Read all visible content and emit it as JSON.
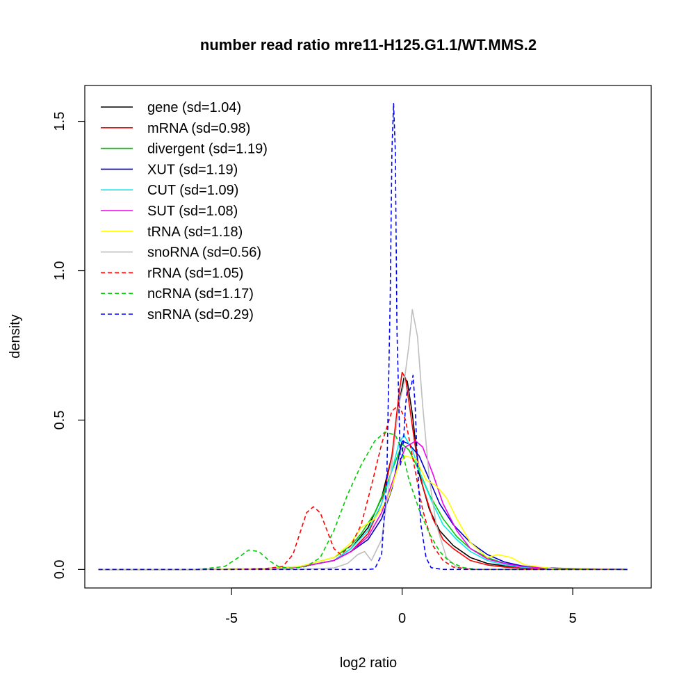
{
  "chart_data": {
    "type": "line",
    "title": "number read ratio mre11-H125.G1.1/WT.MMS.2",
    "xlabel": "log2 ratio",
    "ylabel": "density",
    "xlim": [
      -9.3,
      7.3
    ],
    "ylim": [
      -0.062,
      1.62
    ],
    "xticks": [
      -5,
      0,
      5
    ],
    "xtick_labels": [
      "-5",
      "0",
      "5"
    ],
    "yticks": [
      0.0,
      0.5,
      1.0,
      1.5
    ],
    "ytick_labels": [
      "0.0",
      "0.5",
      "1.0",
      "1.5"
    ],
    "grid": false,
    "legend_position": "top-left",
    "series": [
      {
        "name": "gene (sd=1.04)",
        "color": "#000000",
        "dash": "solid",
        "x": [
          -8.9,
          -6,
          -4,
          -3,
          -2,
          -1.5,
          -1,
          -0.6,
          -0.3,
          -0.1,
          0.05,
          0.15,
          0.3,
          0.5,
          0.8,
          1.1,
          1.5,
          2,
          2.5,
          3,
          3.5,
          4.5,
          5.5,
          6.6
        ],
        "y": [
          0,
          0,
          0.003,
          0.008,
          0.03,
          0.07,
          0.14,
          0.24,
          0.38,
          0.55,
          0.64,
          0.63,
          0.52,
          0.32,
          0.2,
          0.13,
          0.08,
          0.04,
          0.02,
          0.012,
          0.008,
          0.004,
          0.002,
          0
        ]
      },
      {
        "name": "mRNA (sd=0.98)",
        "color": "#ff0000",
        "dash": "solid",
        "x": [
          -8.9,
          -6,
          -4,
          -3,
          -2,
          -1.5,
          -1,
          -0.6,
          -0.3,
          -0.1,
          0,
          0.1,
          0.2,
          0.4,
          0.6,
          0.9,
          1.2,
          1.5,
          2,
          2.5,
          3,
          3.5,
          4.5,
          6.6
        ],
        "y": [
          0,
          0,
          0.003,
          0.008,
          0.03,
          0.06,
          0.12,
          0.22,
          0.38,
          0.58,
          0.66,
          0.64,
          0.56,
          0.4,
          0.28,
          0.17,
          0.1,
          0.07,
          0.03,
          0.015,
          0.008,
          0.004,
          0.002,
          0
        ]
      },
      {
        "name": "divergent (sd=1.19)",
        "color": "#00cd00",
        "dash": "solid",
        "x": [
          -8.9,
          -6,
          -4,
          -3,
          -2,
          -1.5,
          -1.2,
          -0.8,
          -0.5,
          -0.2,
          0,
          0.2,
          0.5,
          0.8,
          1.2,
          1.6,
          2,
          2.5,
          3,
          3.5,
          4.5,
          6.6
        ],
        "y": [
          0,
          0,
          0.003,
          0.01,
          0.04,
          0.08,
          0.12,
          0.19,
          0.27,
          0.36,
          0.42,
          0.4,
          0.33,
          0.25,
          0.17,
          0.11,
          0.07,
          0.04,
          0.02,
          0.01,
          0.003,
          0
        ]
      },
      {
        "name": "XUT (sd=1.19)",
        "color": "#0000cd",
        "dash": "solid",
        "x": [
          -8.9,
          -6,
          -4,
          -3,
          -2,
          -1.5,
          -1,
          -0.6,
          -0.3,
          0,
          0.2,
          0.5,
          0.8,
          1.1,
          1.5,
          2,
          2.5,
          3,
          3.5,
          4,
          5,
          6.6
        ],
        "y": [
          0,
          0,
          0.003,
          0.008,
          0.03,
          0.06,
          0.1,
          0.17,
          0.27,
          0.43,
          0.42,
          0.38,
          0.3,
          0.22,
          0.15,
          0.09,
          0.05,
          0.025,
          0.012,
          0.006,
          0.002,
          0
        ]
      },
      {
        "name": "CUT (sd=1.09)",
        "color": "#00eeee",
        "dash": "solid",
        "x": [
          -8.9,
          -6,
          -4,
          -3,
          -2,
          -1.5,
          -1,
          -0.6,
          -0.3,
          -0.1,
          0.05,
          0.3,
          0.6,
          0.9,
          1.2,
          1.6,
          2,
          2.5,
          3,
          3.5,
          4.5,
          6.6
        ],
        "y": [
          0,
          0,
          0.003,
          0.008,
          0.03,
          0.07,
          0.13,
          0.22,
          0.33,
          0.42,
          0.45,
          0.4,
          0.3,
          0.22,
          0.15,
          0.1,
          0.06,
          0.03,
          0.015,
          0.008,
          0.003,
          0
        ]
      },
      {
        "name": "SUT (sd=1.08)",
        "color": "#ee00ee",
        "dash": "solid",
        "x": [
          -8.9,
          -6,
          -4,
          -3,
          -2,
          -1.5,
          -1,
          -0.6,
          -0.2,
          0.1,
          0.4,
          0.6,
          0.9,
          1.2,
          1.6,
          2,
          2.5,
          3,
          3.5,
          4.5,
          6.6
        ],
        "y": [
          0,
          0,
          0.003,
          0.008,
          0.03,
          0.06,
          0.11,
          0.19,
          0.32,
          0.41,
          0.43,
          0.41,
          0.32,
          0.22,
          0.13,
          0.07,
          0.035,
          0.02,
          0.01,
          0.003,
          0
        ]
      },
      {
        "name": "tRNA (sd=1.18)",
        "color": "#ffff00",
        "dash": "solid",
        "x": [
          -8.9,
          -6,
          -4,
          -3,
          -2,
          -1.5,
          -1.2,
          -0.8,
          -0.4,
          -0.1,
          0.1,
          0.4,
          0.7,
          1,
          1.3,
          1.6,
          2,
          2.5,
          2.8,
          3.2,
          3.6,
          4.5,
          6.6
        ],
        "y": [
          0,
          0,
          0.003,
          0.01,
          0.04,
          0.09,
          0.14,
          0.17,
          0.24,
          0.35,
          0.38,
          0.37,
          0.3,
          0.28,
          0.24,
          0.17,
          0.09,
          0.04,
          0.05,
          0.04,
          0.015,
          0.002,
          0
        ]
      },
      {
        "name": "snoRNA (sd=0.56)",
        "color": "#bebebe",
        "dash": "solid",
        "x": [
          -8.9,
          -3,
          -2,
          -1.6,
          -1.3,
          -1.1,
          -0.9,
          -0.6,
          -0.3,
          -0.1,
          0.05,
          0.2,
          0.3,
          0.45,
          0.6,
          0.8,
          1,
          1.3,
          1.6,
          2,
          6.6
        ],
        "y": [
          0,
          0,
          0.005,
          0.02,
          0.05,
          0.06,
          0.03,
          0.1,
          0.35,
          0.55,
          0.62,
          0.75,
          0.87,
          0.78,
          0.55,
          0.3,
          0.15,
          0.04,
          0.008,
          0,
          0
        ]
      },
      {
        "name": "rRNA (sd=1.05)",
        "color": "#ff0000",
        "dash": "dash",
        "x": [
          -8.9,
          -5,
          -4,
          -3.5,
          -3.2,
          -3,
          -2.8,
          -2.6,
          -2.4,
          -2.2,
          -2,
          -1.8,
          -1.5,
          -1.2,
          -0.9,
          -0.6,
          -0.3,
          -0.1,
          0.1,
          0.3,
          0.6,
          0.9,
          1.2,
          1.5,
          2,
          6.6
        ],
        "y": [
          0,
          0,
          0.003,
          0.01,
          0.05,
          0.12,
          0.19,
          0.21,
          0.19,
          0.13,
          0.07,
          0.05,
          0.08,
          0.15,
          0.28,
          0.42,
          0.53,
          0.55,
          0.5,
          0.38,
          0.2,
          0.08,
          0.03,
          0.008,
          0,
          0
        ]
      },
      {
        "name": "ncRNA (sd=1.17)",
        "color": "#00cd00",
        "dash": "dash",
        "x": [
          -8.9,
          -6,
          -5.2,
          -4.8,
          -4.5,
          -4.2,
          -3.9,
          -3.6,
          -3.2,
          -2.8,
          -2.4,
          -2,
          -1.6,
          -1.2,
          -0.8,
          -0.5,
          -0.2,
          0,
          0.2,
          0.5,
          0.8,
          1.1,
          1.4,
          1.8,
          2.2,
          6.6
        ],
        "y": [
          0,
          0,
          0.01,
          0.04,
          0.065,
          0.06,
          0.03,
          0.008,
          0.004,
          0.01,
          0.04,
          0.13,
          0.25,
          0.35,
          0.43,
          0.46,
          0.45,
          0.4,
          0.3,
          0.2,
          0.12,
          0.06,
          0.025,
          0.006,
          0,
          0
        ]
      },
      {
        "name": "snRNA (sd=0.29)",
        "color": "#0000ff",
        "dash": "dash",
        "x": [
          -8.9,
          -1,
          -0.8,
          -0.6,
          -0.45,
          -0.35,
          -0.3,
          -0.25,
          -0.2,
          -0.15,
          -0.05,
          0,
          0.05,
          0.1,
          0.15,
          0.22,
          0.28,
          0.32,
          0.38,
          0.45,
          0.55,
          0.7,
          0.85,
          1.2,
          6.6
        ],
        "y": [
          0,
          0,
          0.002,
          0.05,
          0.3,
          0.9,
          1.4,
          1.56,
          1.4,
          0.8,
          0.35,
          0.38,
          0.45,
          0.55,
          0.6,
          0.6,
          0.62,
          0.65,
          0.55,
          0.35,
          0.15,
          0.04,
          0.006,
          0,
          0
        ]
      }
    ]
  }
}
